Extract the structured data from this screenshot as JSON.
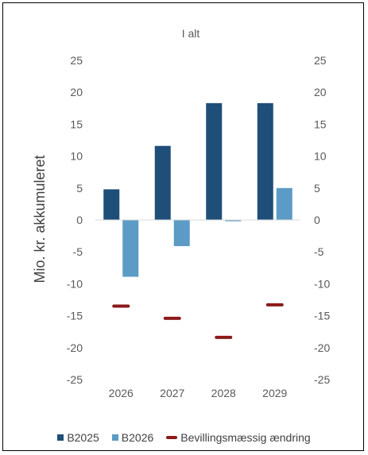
{
  "chart_data": {
    "type": "bar",
    "title": "I alt",
    "ylabel": "Mio. kr. akkumuleret",
    "xlabel": "",
    "categories": [
      "2026",
      "2027",
      "2028",
      "2029"
    ],
    "ylim": [
      -25,
      25
    ],
    "yticks": [
      25,
      20,
      15,
      10,
      5,
      0,
      -5,
      -10,
      -15,
      -20,
      -25
    ],
    "secondary_yticks": [
      25,
      20,
      15,
      10,
      5,
      0,
      -5,
      -10,
      -15,
      -20,
      -25
    ],
    "grid": false,
    "legend_position": "bottom",
    "series": [
      {
        "name": "B2025",
        "type": "bar",
        "color": "#1f4e79",
        "values": [
          4.8,
          11.6,
          18.3,
          18.3
        ]
      },
      {
        "name": "B2026",
        "type": "bar",
        "color": "#5b9bc5",
        "values": [
          -8.9,
          -4.1,
          -0.2,
          5.0
        ]
      },
      {
        "name": "Bevillingsmæssig ændring",
        "type": "marker",
        "color": "#8b1a1a",
        "values": [
          -13.5,
          -15.4,
          -18.4,
          -13.3
        ]
      }
    ]
  }
}
